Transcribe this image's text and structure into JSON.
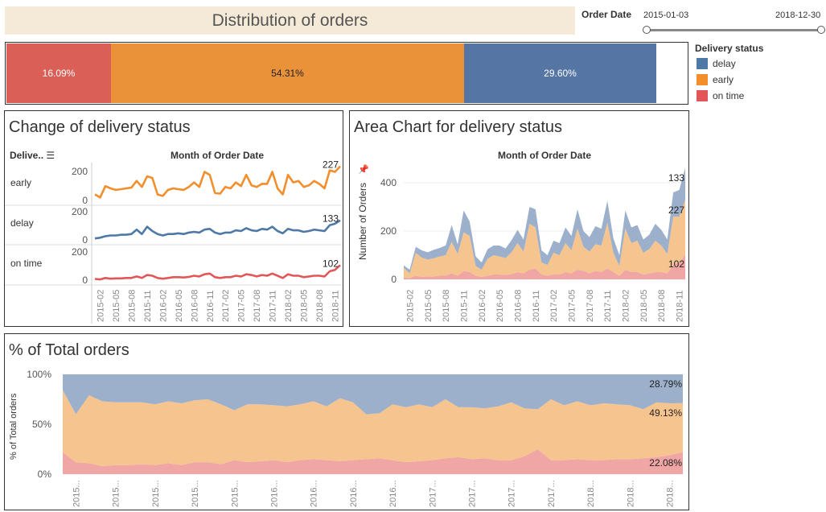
{
  "header": {
    "title": "Distribution of orders"
  },
  "filter": {
    "label": "Order Date",
    "start": "2015-01-03",
    "end": "2018-12-30"
  },
  "legend": {
    "title": "Delivery status",
    "items": [
      {
        "label": "delay",
        "color": "#4e79a7"
      },
      {
        "label": "early",
        "color": "#f28e2b"
      },
      {
        "label": "on time",
        "color": "#e15759"
      }
    ]
  },
  "distribution": {
    "segments": [
      {
        "label": "16.09%",
        "status": "on time",
        "color": "#d95f57",
        "share": 0.1609
      },
      {
        "label": "54.31%",
        "status": "early",
        "color": "#e9923a",
        "share": 0.5431
      },
      {
        "label": "29.60%",
        "status": "delay",
        "color": "#5575a5",
        "share": 0.296
      }
    ]
  },
  "change_panel": {
    "title": "Change of delivery status",
    "col_header": "Delive..",
    "axis_title": "Month of Order Date",
    "rows": [
      {
        "label": "early",
        "tick_top": "200",
        "tick_bottom": "0",
        "end_label": "227"
      },
      {
        "label": "delay",
        "tick_top": "200",
        "tick_bottom": "0",
        "end_label": "133"
      },
      {
        "label": "on time",
        "tick_top": "200",
        "tick_bottom": "0",
        "end_label": "102"
      }
    ],
    "x_ticks": [
      "2015-02",
      "2015-05",
      "2015-08",
      "2015-11",
      "2016-02",
      "2016-05",
      "2016-08",
      "2016-11",
      "2017-02",
      "2017-05",
      "2017-08",
      "2017-11",
      "2018-02",
      "2018-05",
      "2018-08",
      "2018-11"
    ]
  },
  "area_panel": {
    "title": "Area Chart for delivery status",
    "axis_title": "Month of Order Date",
    "y_title": "Number of Orders",
    "y_ticks": [
      "400",
      "200",
      "0"
    ],
    "end_labels": [
      "133",
      "227",
      "102"
    ],
    "x_ticks": [
      "2015-02",
      "2015-05",
      "2015-08",
      "2015-11",
      "2016-02",
      "2016-05",
      "2016-08",
      "2016-11",
      "2017-02",
      "2017-05",
      "2017-08",
      "2017-11",
      "2018-02",
      "2018-05",
      "2018-08",
      "2018-11"
    ]
  },
  "pct_panel": {
    "title": "% of Total orders",
    "y_title": "% of Total orders",
    "y_ticks": [
      "100%",
      "50%",
      "0%"
    ],
    "end_labels": [
      "28.79%",
      "49.13%",
      "22.08%"
    ],
    "x_ticks": [
      "2015...",
      "2015...",
      "2015...",
      "2015...",
      "2015...",
      "2016...",
      "2016...",
      "2016...",
      "2016...",
      "2017...",
      "2017...",
      "2017...",
      "2017...",
      "2018...",
      "2018...",
      "2018..."
    ]
  },
  "chart_data": [
    {
      "type": "bar",
      "title": "Distribution of orders",
      "categories": [
        "on time",
        "early",
        "delay"
      ],
      "values": [
        16.09,
        54.31,
        29.6
      ]
    },
    {
      "type": "line",
      "title": "Change of delivery status",
      "xlabel": "Month of Order Date",
      "ylim": [
        0,
        230
      ],
      "x": [
        "2015-01",
        "2015-02",
        "2015-03",
        "2015-04",
        "2015-05",
        "2015-06",
        "2015-07",
        "2015-08",
        "2015-09",
        "2015-10",
        "2015-11",
        "2015-12",
        "2016-01",
        "2016-02",
        "2016-03",
        "2016-04",
        "2016-05",
        "2016-06",
        "2016-07",
        "2016-08",
        "2016-09",
        "2016-10",
        "2016-11",
        "2016-12",
        "2017-01",
        "2017-02",
        "2017-03",
        "2017-04",
        "2017-05",
        "2017-06",
        "2017-07",
        "2017-08",
        "2017-09",
        "2017-10",
        "2017-11",
        "2017-12",
        "2018-01",
        "2018-02",
        "2018-03",
        "2018-04",
        "2018-05",
        "2018-06",
        "2018-07",
        "2018-08",
        "2018-09",
        "2018-10",
        "2018-11",
        "2018-12"
      ],
      "series": [
        {
          "name": "early",
          "values": [
            40,
            20,
            95,
            80,
            70,
            75,
            80,
            85,
            130,
            90,
            160,
            150,
            40,
            30,
            70,
            80,
            75,
            70,
            90,
            120,
            90,
            190,
            170,
            50,
            45,
            90,
            80,
            120,
            95,
            170,
            100,
            90,
            110,
            110,
            190,
            80,
            40,
            170,
            120,
            130,
            90,
            100,
            130,
            110,
            80,
            200,
            190,
            227
          ]
        },
        {
          "name": "delay",
          "values": [
            10,
            15,
            25,
            30,
            30,
            35,
            35,
            40,
            70,
            40,
            90,
            60,
            40,
            30,
            40,
            40,
            45,
            40,
            50,
            55,
            50,
            70,
            75,
            50,
            40,
            50,
            50,
            65,
            60,
            80,
            65,
            60,
            75,
            70,
            90,
            60,
            45,
            75,
            65,
            65,
            55,
            60,
            70,
            65,
            60,
            100,
            110,
            133
          ]
        },
        {
          "name": "on time",
          "values": [
            8,
            5,
            15,
            10,
            12,
            12,
            15,
            15,
            25,
            15,
            35,
            30,
            15,
            10,
            15,
            20,
            20,
            18,
            22,
            30,
            25,
            40,
            45,
            20,
            15,
            20,
            20,
            30,
            25,
            40,
            35,
            25,
            35,
            30,
            45,
            30,
            15,
            40,
            30,
            30,
            20,
            25,
            30,
            30,
            25,
            60,
            70,
            102
          ]
        }
      ]
    },
    {
      "type": "area",
      "title": "Area Chart for delivery status",
      "xlabel": "Month of Order Date",
      "ylabel": "Number of Orders",
      "ylim": [
        0,
        470
      ],
      "x": [
        "2015-01",
        "2015-02",
        "2015-03",
        "2015-04",
        "2015-05",
        "2015-06",
        "2015-07",
        "2015-08",
        "2015-09",
        "2015-10",
        "2015-11",
        "2015-12",
        "2016-01",
        "2016-02",
        "2016-03",
        "2016-04",
        "2016-05",
        "2016-06",
        "2016-07",
        "2016-08",
        "2016-09",
        "2016-10",
        "2016-11",
        "2016-12",
        "2017-01",
        "2017-02",
        "2017-03",
        "2017-04",
        "2017-05",
        "2017-06",
        "2017-07",
        "2017-08",
        "2017-09",
        "2017-10",
        "2017-11",
        "2017-12",
        "2018-01",
        "2018-02",
        "2018-03",
        "2018-04",
        "2018-05",
        "2018-06",
        "2018-07",
        "2018-08",
        "2018-09",
        "2018-10",
        "2018-11",
        "2018-12"
      ],
      "series": [
        {
          "name": "on time",
          "values": [
            8,
            5,
            15,
            10,
            12,
            12,
            15,
            15,
            25,
            15,
            35,
            30,
            15,
            10,
            15,
            20,
            20,
            18,
            22,
            30,
            25,
            40,
            45,
            20,
            15,
            20,
            20,
            30,
            25,
            40,
            35,
            25,
            35,
            30,
            45,
            30,
            15,
            40,
            30,
            30,
            20,
            25,
            30,
            30,
            25,
            60,
            70,
            102
          ]
        },
        {
          "name": "early",
          "values": [
            40,
            20,
            95,
            80,
            70,
            75,
            80,
            85,
            130,
            90,
            160,
            150,
            40,
            30,
            70,
            80,
            75,
            70,
            90,
            120,
            90,
            190,
            170,
            50,
            45,
            90,
            80,
            120,
            95,
            170,
            100,
            90,
            110,
            110,
            190,
            80,
            40,
            170,
            120,
            130,
            90,
            100,
            130,
            110,
            80,
            200,
            190,
            227
          ]
        },
        {
          "name": "delay",
          "values": [
            10,
            15,
            25,
            30,
            30,
            35,
            35,
            40,
            70,
            40,
            90,
            60,
            40,
            30,
            40,
            40,
            45,
            40,
            50,
            55,
            50,
            70,
            75,
            50,
            40,
            50,
            50,
            65,
            60,
            80,
            65,
            60,
            75,
            70,
            90,
            60,
            45,
            75,
            65,
            65,
            55,
            60,
            70,
            65,
            60,
            100,
            110,
            133
          ]
        }
      ]
    },
    {
      "type": "area",
      "title": "% of Total orders",
      "ylabel": "% of Total orders",
      "ylim": [
        0,
        100
      ],
      "x": [
        "2015-01",
        "2015-02",
        "2015-03",
        "2015-04",
        "2015-05",
        "2015-06",
        "2015-07",
        "2015-08",
        "2015-09",
        "2015-10",
        "2015-11",
        "2015-12",
        "2016-01",
        "2016-02",
        "2016-03",
        "2016-04",
        "2016-05",
        "2016-06",
        "2016-07",
        "2016-08",
        "2016-09",
        "2016-10",
        "2016-11",
        "2016-12",
        "2017-01",
        "2017-02",
        "2017-03",
        "2017-04",
        "2017-05",
        "2017-06",
        "2017-07",
        "2017-08",
        "2017-09",
        "2017-10",
        "2017-11",
        "2017-12",
        "2018-01",
        "2018-02",
        "2018-03",
        "2018-04",
        "2018-05",
        "2018-06",
        "2018-07",
        "2018-08",
        "2018-09",
        "2018-10",
        "2018-11",
        "2018-12"
      ],
      "series": [
        {
          "name": "on time",
          "values": [
            22,
            12,
            11,
            8,
            9,
            9,
            10,
            9,
            11,
            9,
            12,
            12,
            10,
            14,
            12,
            13,
            14,
            12,
            14,
            15,
            14,
            13,
            14,
            15,
            16,
            14,
            12,
            13,
            14,
            16,
            17,
            15,
            16,
            14,
            14,
            18,
            25,
            14,
            14,
            15,
            14,
            14,
            15,
            15,
            16,
            17,
            19,
            22.08
          ]
        },
        {
          "name": "early",
          "values": [
            62,
            48,
            68,
            65,
            63,
            63,
            62,
            61,
            62,
            62,
            62,
            63,
            60,
            50,
            58,
            57,
            55,
            56,
            56,
            58,
            54,
            63,
            58,
            45,
            45,
            56,
            55,
            57,
            53,
            59,
            50,
            52,
            50,
            54,
            58,
            48,
            40,
            61,
            55,
            58,
            55,
            57,
            55,
            54,
            49,
            55,
            52,
            49.13
          ]
        },
        {
          "name": "delay",
          "values": [
            16,
            40,
            21,
            27,
            28,
            28,
            28,
            30,
            27,
            29,
            26,
            25,
            30,
            36,
            30,
            30,
            31,
            32,
            30,
            27,
            32,
            24,
            28,
            40,
            39,
            30,
            33,
            30,
            33,
            25,
            33,
            33,
            34,
            32,
            28,
            34,
            35,
            25,
            31,
            27,
            31,
            29,
            30,
            31,
            35,
            28,
            29,
            28.79
          ]
        }
      ]
    }
  ]
}
